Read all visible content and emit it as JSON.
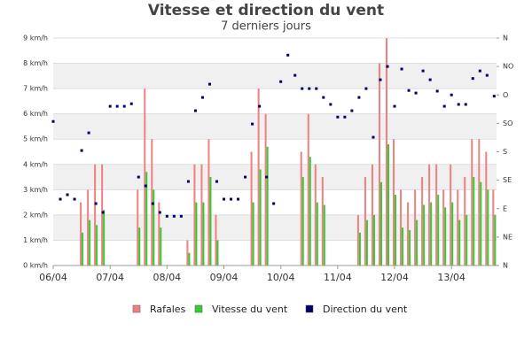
{
  "chart_data": {
    "type": "combo",
    "title": "Vitesse et direction du vent",
    "subtitle": "7 derniers jours",
    "grid": true,
    "legend": "bottom",
    "x": [
      0,
      3,
      6,
      9,
      12,
      15,
      18,
      21,
      24,
      27,
      30,
      33,
      36,
      39,
      42,
      45,
      48,
      51,
      54,
      57,
      60,
      63,
      66,
      69,
      72,
      75,
      78,
      81,
      84,
      87,
      90,
      93,
      96,
      99,
      102,
      105,
      108,
      111,
      114,
      117,
      120,
      123,
      126,
      129,
      132,
      135,
      138,
      141,
      144,
      147,
      150,
      153,
      156,
      159,
      162,
      165,
      168,
      171,
      174,
      177,
      180,
      183,
      186
    ],
    "xlim": [
      0,
      187
    ],
    "xticks": [
      {
        "value": 0,
        "label": "06/04"
      },
      {
        "value": 24,
        "label": "07/04"
      },
      {
        "value": 48,
        "label": "08/04"
      },
      {
        "value": 72,
        "label": "09/04"
      },
      {
        "value": 96,
        "label": "10/04"
      },
      {
        "value": 120,
        "label": "11/04"
      },
      {
        "value": 144,
        "label": "12/04"
      },
      {
        "value": 168,
        "label": "13/04"
      }
    ],
    "ylim": [
      0,
      9
    ],
    "yticks": [
      {
        "value": 0,
        "label": "0 km/h"
      },
      {
        "value": 1,
        "label": "1 km/h"
      },
      {
        "value": 2,
        "label": "2 km/h"
      },
      {
        "value": 3,
        "label": "3 km/h"
      },
      {
        "value": 4,
        "label": "4 km/h"
      },
      {
        "value": 5,
        "label": "5 km/h"
      },
      {
        "value": 6,
        "label": "6 km/h"
      },
      {
        "value": 7,
        "label": "7 km/h"
      },
      {
        "value": 8,
        "label": "8 km/h"
      },
      {
        "value": 9,
        "label": "9 km/h"
      }
    ],
    "y2lim": [
      0,
      360
    ],
    "y2ticks": [
      {
        "value": 0,
        "label": "N"
      },
      {
        "value": 45,
        "label": "NE"
      },
      {
        "value": 90,
        "label": "E"
      },
      {
        "value": 135,
        "label": "SE"
      },
      {
        "value": 180,
        "label": "S"
      },
      {
        "value": 225,
        "label": "SO"
      },
      {
        "value": 270,
        "label": "O"
      },
      {
        "value": 315,
        "label": "NO"
      },
      {
        "value": 360,
        "label": "N"
      }
    ],
    "series": [
      {
        "name": "Rafales",
        "type": "bar",
        "color": "#f08080",
        "values": [
          null,
          null,
          null,
          null,
          2.5,
          3,
          4,
          4,
          null,
          null,
          null,
          null,
          3,
          7,
          5,
          2.5,
          null,
          null,
          null,
          1,
          4,
          4,
          5,
          2,
          null,
          null,
          null,
          null,
          4.5,
          7,
          6,
          null,
          null,
          null,
          null,
          4.5,
          6,
          4,
          3.5,
          null,
          null,
          null,
          null,
          2,
          3.5,
          4,
          8,
          9,
          5,
          3,
          2.5,
          3,
          3.5,
          4,
          4,
          3,
          4,
          3,
          3.5,
          5,
          5,
          4.5,
          3
        ]
      },
      {
        "name": "Vitesse du vent",
        "type": "bar",
        "color": "#33cc33",
        "values": [
          null,
          null,
          null,
          null,
          1.3,
          1.8,
          1.6,
          2.2,
          null,
          null,
          null,
          null,
          1.5,
          3.7,
          3,
          1.5,
          null,
          null,
          null,
          0.5,
          2.5,
          2.5,
          3.5,
          1,
          null,
          null,
          null,
          null,
          2.5,
          3.8,
          4.7,
          null,
          null,
          null,
          null,
          3.5,
          4.3,
          2.5,
          2.4,
          null,
          null,
          null,
          null,
          1.3,
          1.8,
          2,
          3.3,
          4.8,
          2.8,
          1.5,
          1.4,
          1.8,
          2.4,
          2.5,
          2.8,
          2.3,
          2.5,
          1.8,
          2,
          3.5,
          3.3,
          3,
          2
        ]
      },
      {
        "name": "Direction du vent",
        "type": "scatter",
        "axis": "y2",
        "color": "#000066",
        "values": [
          228,
          105,
          112,
          105,
          182,
          210,
          98,
          84,
          252,
          252,
          252,
          256,
          140,
          126,
          98,
          84,
          78,
          78,
          78,
          133,
          245,
          266,
          287,
          133,
          105,
          105,
          105,
          140,
          224,
          252,
          140,
          98,
          291,
          333,
          301,
          280,
          280,
          280,
          266,
          255,
          235,
          235,
          245,
          266,
          280,
          203,
          294,
          315,
          252,
          311,
          277,
          273,
          308,
          294,
          276,
          252,
          270,
          255,
          255,
          296,
          308,
          301,
          268
        ]
      }
    ]
  }
}
